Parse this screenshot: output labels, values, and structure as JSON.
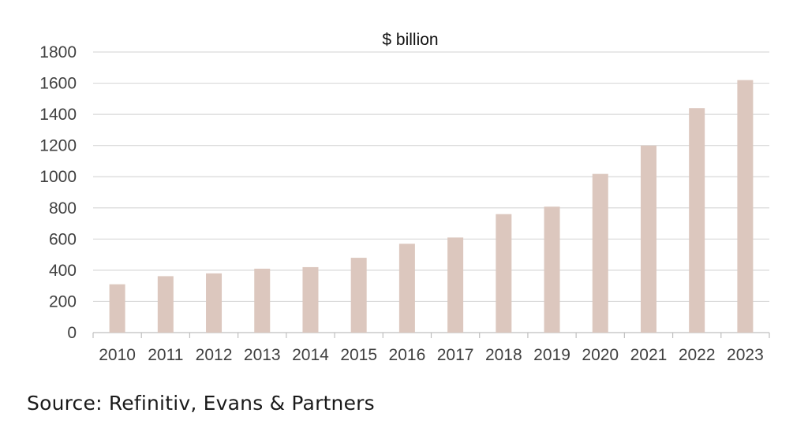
{
  "chart_data": {
    "type": "bar",
    "title": "$ billion",
    "categories": [
      "2010",
      "2011",
      "2012",
      "2013",
      "2014",
      "2015",
      "2016",
      "2017",
      "2018",
      "2019",
      "2020",
      "2021",
      "2022",
      "2023"
    ],
    "values": [
      310,
      362,
      380,
      410,
      420,
      480,
      570,
      610,
      760,
      808,
      1018,
      1200,
      1440,
      1620
    ],
    "ylim": [
      0,
      1800
    ],
    "yticks": [
      0,
      200,
      400,
      600,
      800,
      1000,
      1200,
      1400,
      1600,
      1800
    ],
    "grid": true,
    "legend": "none",
    "bar_color": "#dcc7be",
    "grid_color": "#d9d9d9",
    "axis_color": "#bfbfbf"
  },
  "source": "Source: Refinitiv, Evans & Partners"
}
